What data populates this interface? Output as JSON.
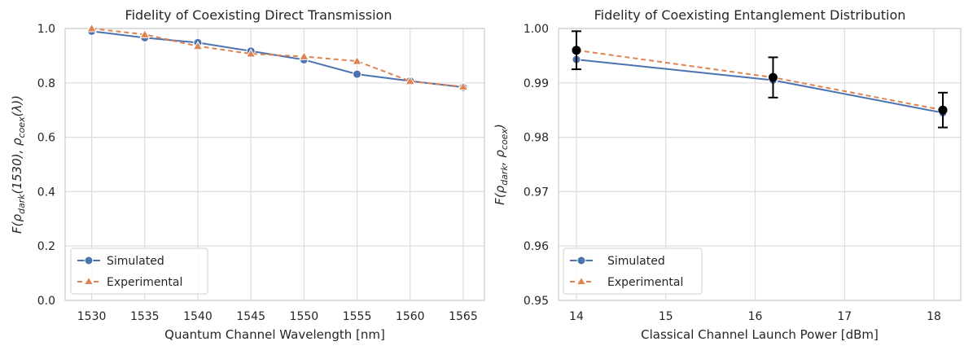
{
  "chart_data": [
    {
      "type": "line",
      "title": "Fidelity of Coexisting Direct Transmission",
      "xlabel": "Quantum Channel Wavelength [nm]",
      "ylabel_parts": {
        "pre": "F(ρ",
        "sub1": "dark",
        "mid": "(1530), ρ",
        "sub2": "coex",
        "post": "(λ))"
      },
      "xlim": [
        1527.5,
        1567.0
      ],
      "ylim": [
        0.0,
        1.0
      ],
      "xticks": [
        1530,
        1535,
        1540,
        1545,
        1550,
        1555,
        1560,
        1565
      ],
      "xtick_labels": [
        "1530",
        "1535",
        "1540",
        "1545",
        "1550",
        "1555",
        "1560",
        "1565"
      ],
      "yticks": [
        0.0,
        0.2,
        0.4,
        0.6,
        0.8,
        1.0
      ],
      "ytick_labels": [
        "0.0",
        "0.2",
        "0.4",
        "0.6",
        "0.8",
        "1.0"
      ],
      "grid": true,
      "legend_position": "lower-left",
      "series": [
        {
          "name": "Simulated",
          "color": "#4c72b0",
          "style": "solid",
          "marker": "circle",
          "x": [
            1530,
            1535,
            1540,
            1545,
            1550,
            1555,
            1560,
            1565
          ],
          "y": [
            0.99,
            0.966,
            0.948,
            0.917,
            0.885,
            0.832,
            0.807,
            0.784
          ]
        },
        {
          "name": "Experimental",
          "color": "#dd8452",
          "style": "dashed",
          "marker": "triangle",
          "x": [
            1530,
            1535,
            1540,
            1545,
            1550,
            1555,
            1560,
            1565
          ],
          "y": [
            1.0,
            0.978,
            0.935,
            0.907,
            0.897,
            0.88,
            0.806,
            0.786
          ]
        }
      ]
    },
    {
      "type": "line",
      "title": "Fidelity of Coexisting Entanglement Distribution",
      "xlabel": "Classical Channel Launch Power [dBm]",
      "ylabel_parts": {
        "pre": "F(ρ",
        "sub1": "dark",
        "mid": ", ρ",
        "sub2": "coex",
        "post": ")"
      },
      "xlim": [
        13.8,
        18.3
      ],
      "ylim": [
        0.95,
        1.0
      ],
      "xticks": [
        14,
        15,
        16,
        17,
        18
      ],
      "xtick_labels": [
        "14",
        "15",
        "16",
        "17",
        "18"
      ],
      "yticks": [
        0.95,
        0.96,
        0.97,
        0.98,
        0.99,
        1.0
      ],
      "ytick_labels": [
        "0.95",
        "0.96",
        "0.97",
        "0.98",
        "0.99",
        "1.00"
      ],
      "grid": true,
      "legend_position": "lower-left",
      "series": [
        {
          "name": "Simulated",
          "color": "#4c72b0",
          "style": "solid",
          "marker": "circle",
          "x": [
            14.0,
            16.2,
            18.1
          ],
          "y": [
            0.9943,
            0.9905,
            0.9845
          ]
        },
        {
          "name": "Experimental",
          "color": "#dd8452",
          "style": "dashed",
          "marker": "triangle",
          "x": [
            14.0,
            16.2,
            18.1
          ],
          "y": [
            0.996,
            0.991,
            0.985
          ]
        }
      ],
      "errorbars": {
        "color": "#000000",
        "x": [
          14.0,
          16.2,
          18.1
        ],
        "y": [
          0.996,
          0.991,
          0.985
        ],
        "yerr": [
          0.0035,
          0.0037,
          0.0032
        ]
      }
    }
  ]
}
